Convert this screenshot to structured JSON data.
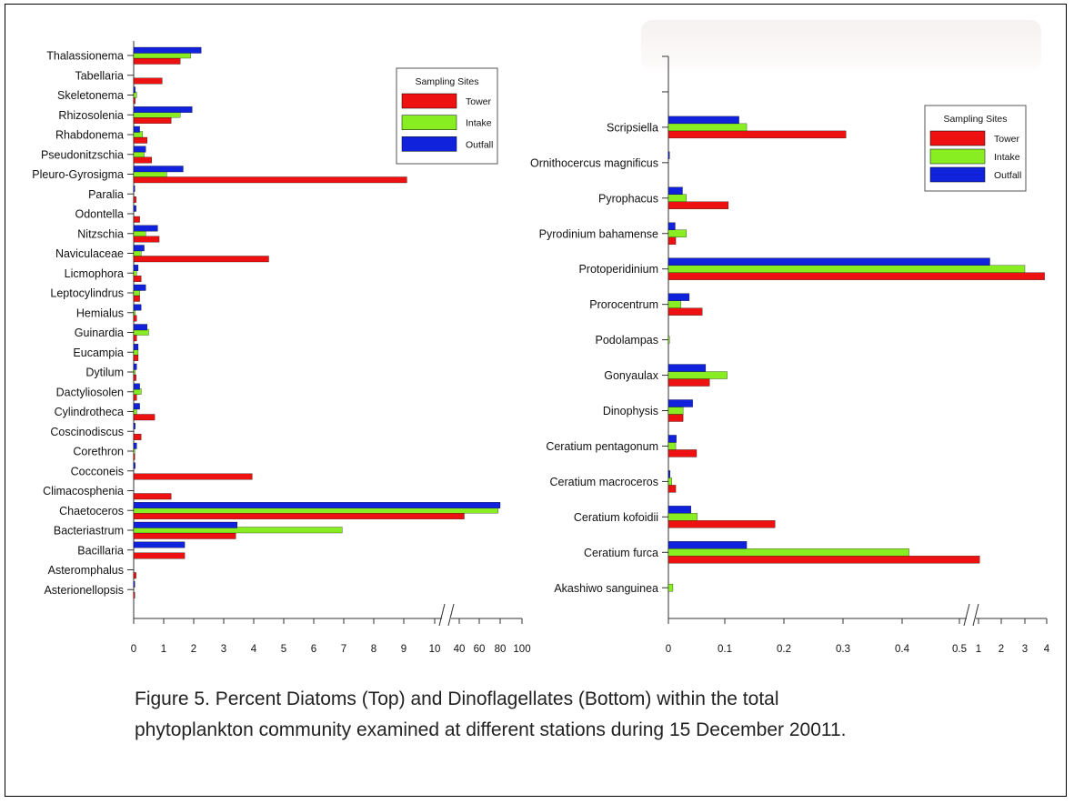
{
  "caption": {
    "line1": "Figure 5. Percent Diatoms  (Top) and Dinoflagellates (Bottom) within the total",
    "line2": "phytoplankton community examined at different stations during 15 December 20011."
  },
  "colors": {
    "Tower": "#ee1111",
    "Intake": "#88ee22",
    "Outfall": "#1122dd"
  },
  "chart_data": [
    {
      "type": "bar",
      "orientation": "horizontal",
      "title": "",
      "xlabel": "",
      "ylabel": "",
      "x_ticks": [
        "0",
        "1",
        "2",
        "3",
        "4",
        "5",
        "6",
        "7",
        "8",
        "9",
        "10",
        "40",
        "60",
        "80",
        "100"
      ],
      "axis_break": "between 10 and 40",
      "xlim": [
        0,
        100
      ],
      "legend": {
        "title": "Sampling Sites",
        "entries": [
          "Tower",
          "Intake",
          "Outfall"
        ],
        "position": "top-right"
      },
      "categories": [
        "Thalassionema",
        "Tabellaria",
        "Skeletonema",
        "Rhizosolenia",
        "Rhabdonema",
        "Pseudonitzschia",
        "Pleuro-Gyrosigma",
        "Paralia",
        "Odontella",
        "Nitzschia",
        "Naviculaceae",
        "Licmophora",
        "Leptocylindrus",
        "Hemialus",
        "Guinardia",
        "Eucampia",
        "Dytilum",
        "Dactyliosolen",
        "Cylindrotheca",
        "Coscinodiscus",
        "Corethron",
        "Cocconeis",
        "Climacosphenia",
        "Chaetoceros",
        "Bacteriastrum",
        "Bacillaria",
        "Asteromphalus",
        "Asterionellopsis"
      ],
      "series": [
        {
          "name": "Tower",
          "values": [
            1.55,
            0.95,
            0.05,
            1.25,
            0.45,
            0.6,
            9.1,
            0.08,
            0.2,
            0.85,
            4.5,
            0.25,
            0.2,
            0.1,
            0.1,
            0.15,
            0.08,
            0.1,
            0.7,
            0.25,
            0.03,
            3.95,
            1.25,
            45,
            3.4,
            1.7,
            0.08,
            0.02
          ]
        },
        {
          "name": "Intake",
          "values": [
            1.9,
            0,
            0.1,
            1.55,
            0.3,
            0.35,
            1.1,
            0,
            0,
            0.4,
            0.25,
            0.1,
            0.2,
            0.05,
            0.5,
            0.15,
            0.05,
            0.25,
            0.1,
            0,
            0.02,
            0,
            0,
            78,
            6.95,
            0,
            0,
            0
          ]
        },
        {
          "name": "Outfall",
          "values": [
            2.25,
            0,
            0.05,
            1.95,
            0.2,
            0.4,
            1.65,
            0.03,
            0.08,
            0.8,
            0.35,
            0.15,
            0.4,
            0.25,
            0.45,
            0.15,
            0.1,
            0.2,
            0.2,
            0.05,
            0.1,
            0.05,
            0,
            80,
            3.45,
            1.7,
            0,
            0.02
          ]
        }
      ]
    },
    {
      "type": "bar",
      "orientation": "horizontal",
      "title": "",
      "xlabel": "",
      "ylabel": "",
      "x_ticks": [
        "0",
        "0.1",
        "0.2",
        "0.3",
        "0.4",
        "0.5",
        "1",
        "2",
        "3",
        "4"
      ],
      "axis_break": "between 0.5 and 1",
      "xlim": [
        0,
        4
      ],
      "legend": {
        "title": "Sampling Sites",
        "entries": [
          "Tower",
          "Intake",
          "Outfall"
        ],
        "position": "top-right"
      },
      "categories": [
        "",
        "",
        "Scripsiella",
        "Ornithocercus magnificus",
        "Pyrophacus",
        "Pyrodinium bahamense",
        "Protoperidinium",
        "Prorocentrum",
        "Podolampas",
        "Gonyaulax",
        "Dinophysis",
        "Ceratium pentagonum",
        "Ceratium macroceros",
        "Ceratium kofoidii",
        "Ceratium furca",
        "Akashiwo sanguinea"
      ],
      "series": [
        {
          "name": "Tower",
          "values": [
            0,
            0,
            0.305,
            0,
            0.106,
            0.013,
            3.9,
            0.06,
            0,
            0.073,
            0.026,
            0.05,
            0.013,
            0.185,
            1.05,
            0
          ]
        },
        {
          "name": "Intake",
          "values": [
            0,
            0,
            0.137,
            0,
            0.032,
            0.032,
            3.0,
            0.022,
            0.001,
            0.104,
            0.026,
            0.013,
            0.006,
            0.051,
            0.412,
            0.008
          ]
        },
        {
          "name": "Outfall",
          "values": [
            0,
            0,
            0.124,
            0.002,
            0.025,
            0.012,
            1.5,
            0.037,
            0,
            0.066,
            0.043,
            0.014,
            0.003,
            0.04,
            0.137,
            0
          ]
        }
      ]
    }
  ]
}
